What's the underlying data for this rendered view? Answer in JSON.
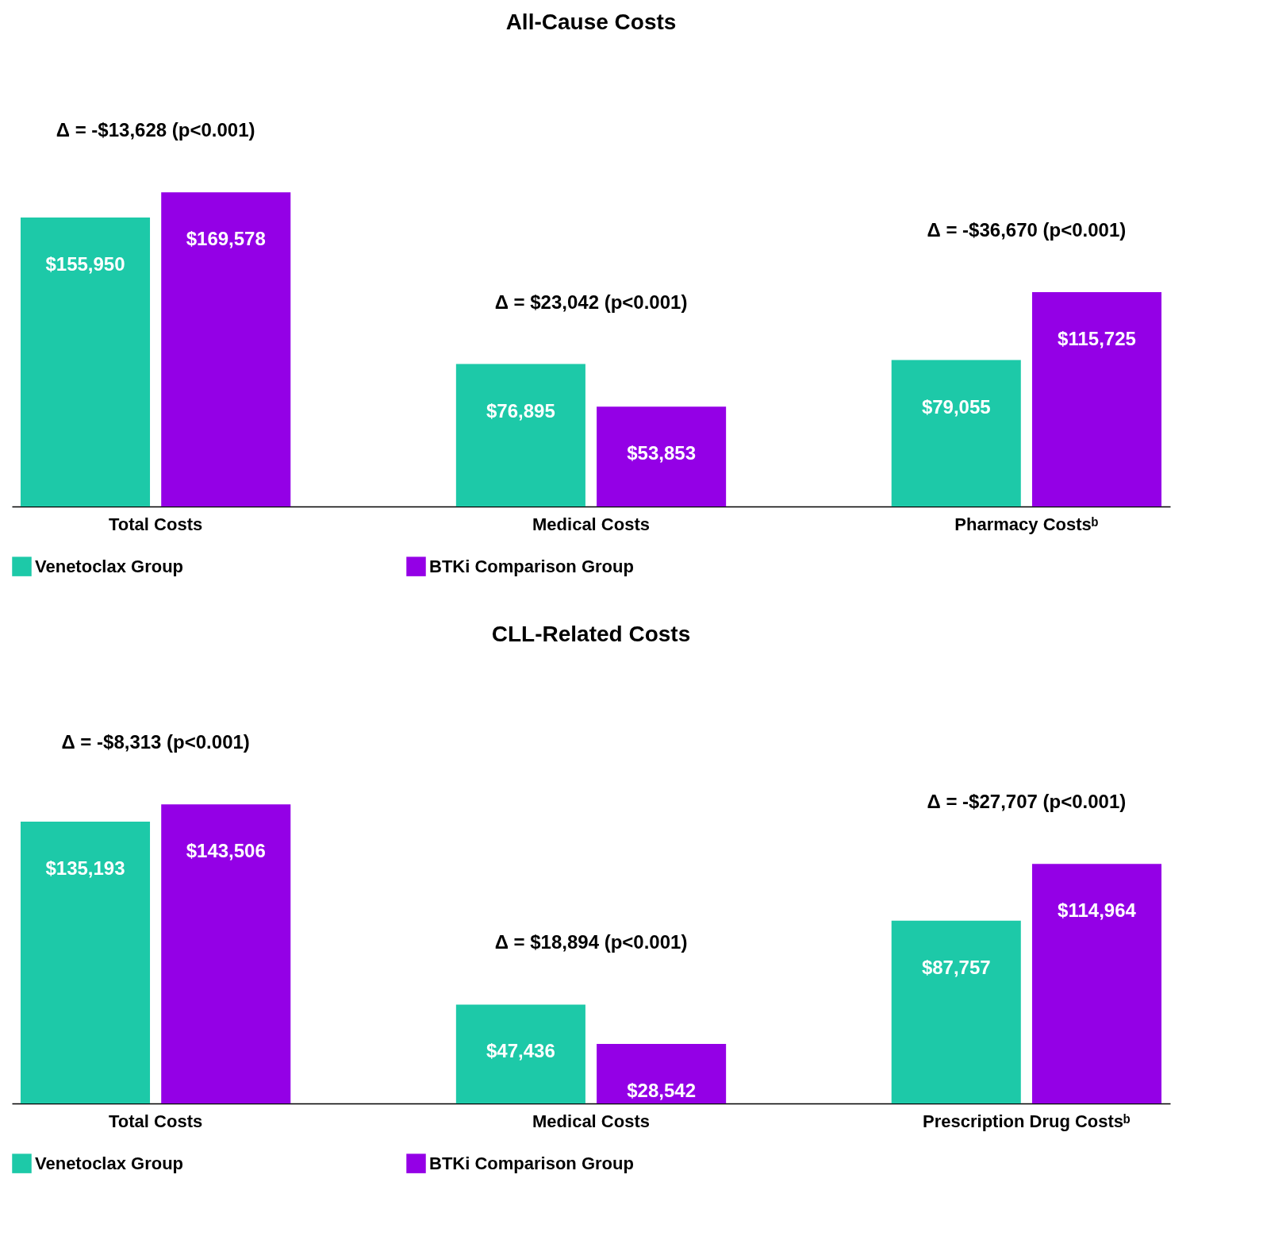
{
  "chart_data": [
    {
      "type": "bar",
      "title": "All-Cause Costs",
      "categories": [
        "Total Costs",
        "Medical Costs",
        "Pharmacy Costsᵇ"
      ],
      "series": [
        {
          "name": "Venetoclax Group",
          "color": "#1dc9a8",
          "values": [
            155950,
            76895,
            79055
          ],
          "value_labels": [
            "$155,950",
            "$76,895",
            "$79,055"
          ]
        },
        {
          "name": "BTKi Comparison Group",
          "color": "#9400e6",
          "values": [
            169578,
            53853,
            115725
          ],
          "value_labels": [
            "$169,578",
            "$53,853",
            "$115,725"
          ]
        }
      ],
      "annotations": [
        "Δ = -$13,628 (p<0.001)",
        "Δ = $23,042 (p<0.001)",
        "Δ = -$36,670 (p<0.001)"
      ],
      "legend": "bottom",
      "grid": false
    },
    {
      "type": "bar",
      "title": "CLL-Related Costs",
      "categories": [
        "Total Costs",
        "Medical Costs",
        "Prescription Drug Costsᵇ"
      ],
      "series": [
        {
          "name": "Venetoclax Group",
          "color": "#1dc9a8",
          "values": [
            135193,
            47436,
            87757
          ],
          "value_labels": [
            "$135,193",
            "$47,436",
            "$87,757"
          ]
        },
        {
          "name": "BTKi Comparison Group",
          "color": "#9400e6",
          "values": [
            143506,
            28542,
            114964
          ],
          "value_labels": [
            "$143,506",
            "$28,542",
            "$114,964"
          ]
        }
      ],
      "annotations": [
        "Δ = -$8,313 (p<0.001)",
        "Δ = $18,894 (p<0.001)",
        "Δ = -$27,707 (p<0.001)"
      ],
      "legend": "bottom",
      "grid": false
    }
  ]
}
